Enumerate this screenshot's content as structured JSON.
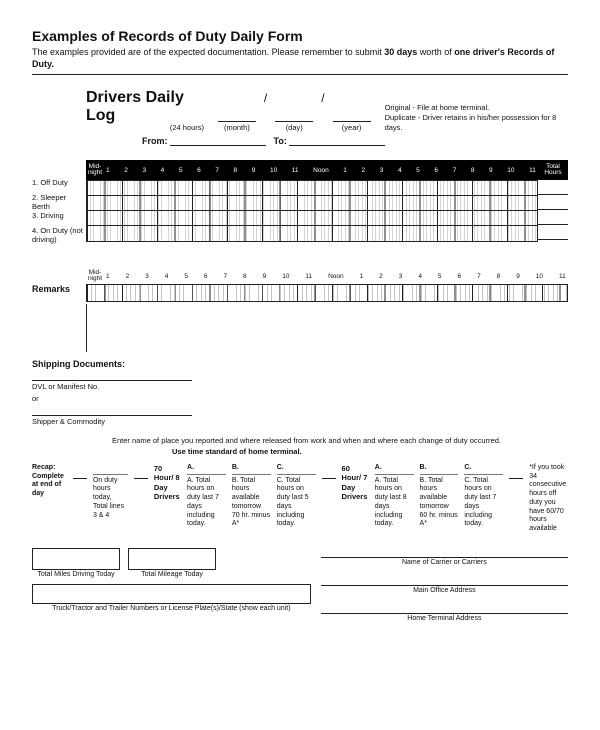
{
  "header": {
    "title": "Examples of Records of Duty Daily Form",
    "subtitle_a": "The examples provided are of the expected documentation. Please remember to submit ",
    "subtitle_b": "30 days",
    "subtitle_c": " worth of ",
    "subtitle_d": "one driver's Records of Duty.",
    "log_title": "Drivers Daily Log",
    "hours24": "(24 hours)",
    "month": "(month)",
    "day": "(day)",
    "year": "(year)",
    "note1": "Original - File at home terminal.",
    "note2": "Duplicate - Driver retains in his/her possession for 8 days.",
    "from": "From:",
    "to": "To:"
  },
  "timebar": {
    "mid": "Mid-\nnight",
    "noon": "Noon",
    "total": "Total\nHours",
    "hours": [
      "1",
      "2",
      "3",
      "4",
      "5",
      "6",
      "7",
      "8",
      "9",
      "10",
      "11",
      "Noon",
      "1",
      "2",
      "3",
      "4",
      "5",
      "6",
      "7",
      "8",
      "9",
      "10",
      "11"
    ]
  },
  "rows": {
    "r1": "1. Off Duty",
    "r2": "2. Sleeper Berth",
    "r3": "3. Driving",
    "r4": "4. On Duty (not driving)"
  },
  "remarks": "Remarks",
  "shipping": {
    "title": "Shipping Documents:",
    "dvl": "DVL or Manifest No.",
    "or": "or",
    "sc": "Shipper & Commodity"
  },
  "instr1": "Enter name of place you reported and where released from work and when and where each change of duty occurred.",
  "instr2": "Use time standard of home terminal.",
  "recap": {
    "rtitle": "Recap: Complete at end of day",
    "onduty": "On duty hours today, Total lines 3 & 4",
    "drv8": "70 Hour/ 8 Day Drivers",
    "a": "A.",
    "b": "B.",
    "c": "C.",
    "a1": "A. Total hours on duty last 7 days including today.",
    "b1": "B. Total hours available tomorrow 70 hr. minus A*",
    "c1": "C. Total hours on duty last 5 days including today.",
    "drv7": "60 Hour/ 7 Day Drivers",
    "a2": "A. Total hours on duty last 8 days including today.",
    "b2": "B. Total hours available tomorrow 60 hr. minus A*",
    "c2": "C. Total hours on duty last 7 days including today.",
    "star": "*If you took 34 consecutive hours off duty you have 60/70 hours available"
  },
  "foot": {
    "miles": "Total Miles Driving Today",
    "mileage": "Total Mileage Today",
    "truck": "Truck/Tractor and Trailer Numbers or License Plate(s)/State (show each unit)",
    "carrier": "Name of Carrier or Carriers",
    "office": "Main Office Address",
    "home": "Home Terminal Address"
  }
}
